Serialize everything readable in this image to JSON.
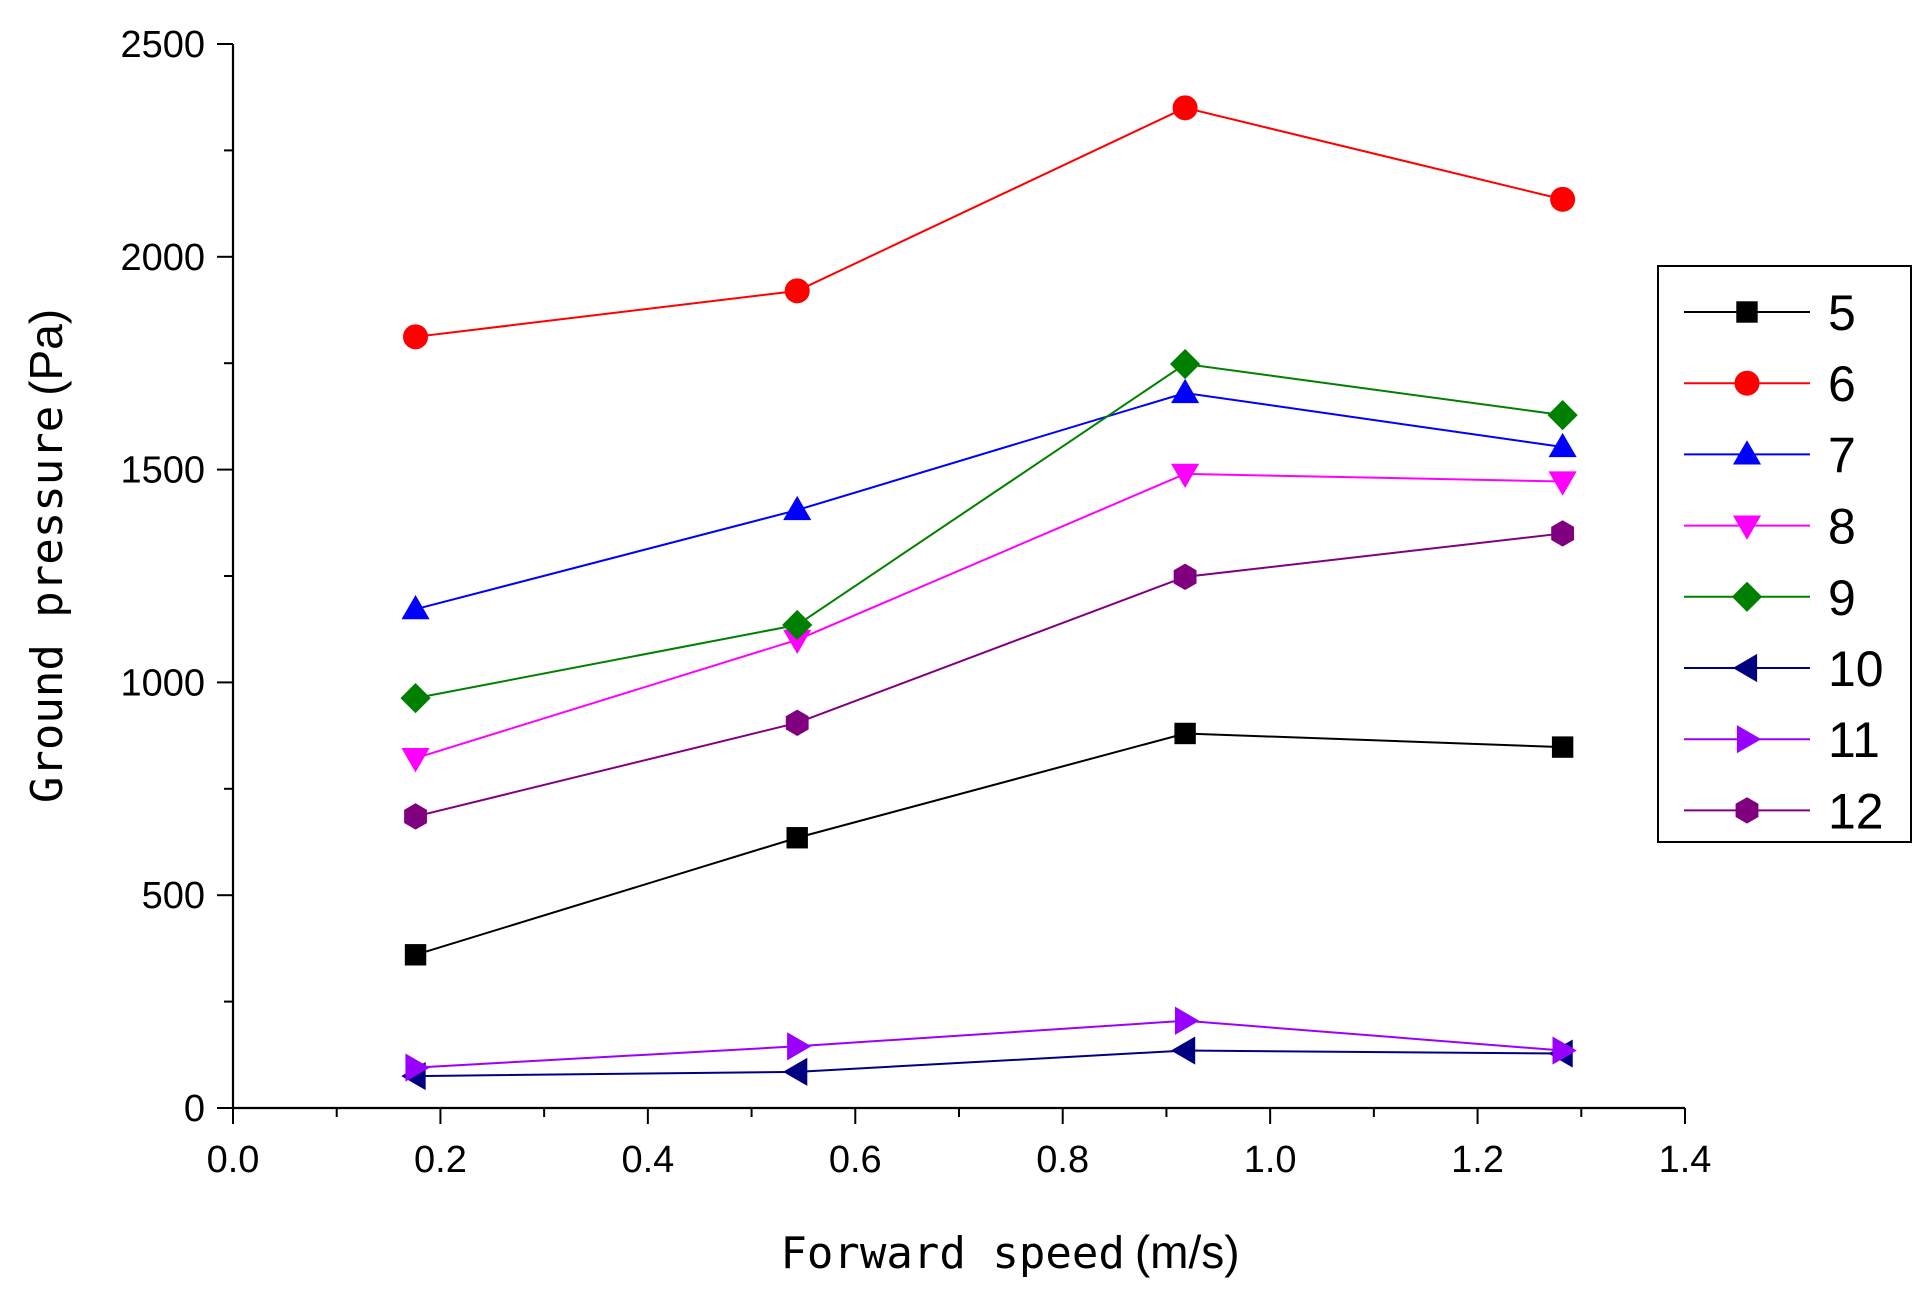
{
  "chart_data": {
    "type": "line",
    "xlabel": {
      "text": "Forward speed",
      "unit": "(m/s)"
    },
    "ylabel": {
      "text": "Ground pressure",
      "unit": "(Pa)"
    },
    "xlim": [
      0.0,
      1.4
    ],
    "ylim": [
      0,
      2500
    ],
    "xticks": [
      "0.0",
      "0.2",
      "0.4",
      "0.6",
      "0.8",
      "1.0",
      "1.2",
      "1.4"
    ],
    "yticks": [
      "0",
      "500",
      "1000",
      "1500",
      "2000",
      "2500"
    ],
    "x": [
      0.176,
      0.544,
      0.918,
      1.282
    ],
    "grid": false,
    "legend_position": "right",
    "series": [
      {
        "name": "5",
        "color": "#000000",
        "marker": "square",
        "values": [
          360,
          635,
          880,
          848
        ]
      },
      {
        "name": "6",
        "color": "#ff0000",
        "marker": "circle",
        "values": [
          1812,
          1920,
          2350,
          2135
        ]
      },
      {
        "name": "7",
        "color": "#0000ff",
        "marker": "triangle-up",
        "values": [
          1172,
          1405,
          1680,
          1553
        ]
      },
      {
        "name": "8",
        "color": "#ff00ff",
        "marker": "triangle-down",
        "values": [
          822,
          1100,
          1490,
          1472
        ]
      },
      {
        "name": "9",
        "color": "#008000",
        "marker": "diamond",
        "values": [
          963,
          1135,
          1748,
          1628
        ]
      },
      {
        "name": "10",
        "color": "#000080",
        "marker": "triangle-left",
        "values": [
          75,
          85,
          135,
          128
        ]
      },
      {
        "name": "11",
        "color": "#9900ff",
        "marker": "triangle-right",
        "values": [
          95,
          145,
          205,
          135
        ]
      },
      {
        "name": "12",
        "color": "#800080",
        "marker": "hexagon",
        "values": [
          685,
          905,
          1248,
          1350
        ]
      }
    ]
  }
}
